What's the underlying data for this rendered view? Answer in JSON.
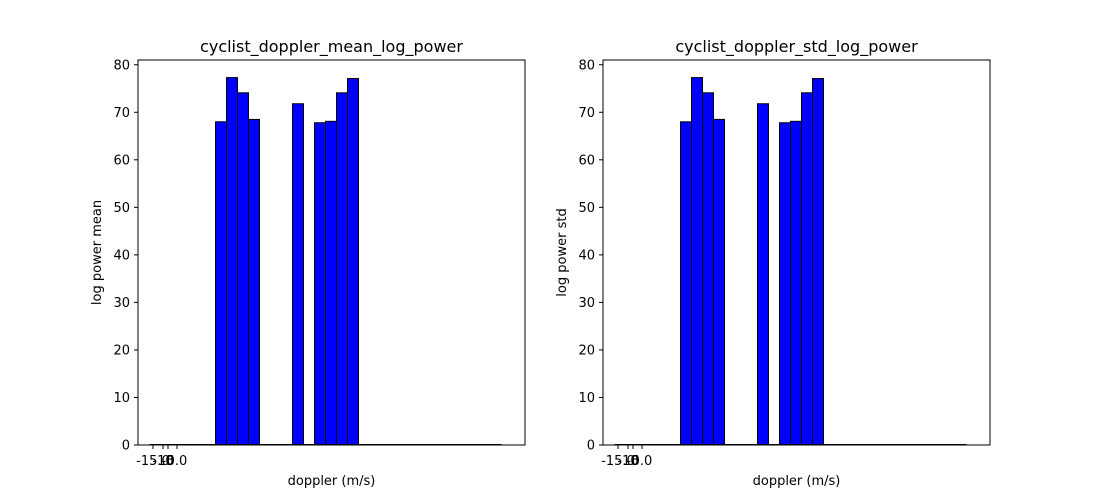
{
  "chart_data": [
    {
      "type": "bar",
      "title": "cyclist_doppler_mean_log_power",
      "xlabel": "doppler (m/s)",
      "ylabel": "log power mean",
      "ylim": [
        0,
        81
      ],
      "yticks": [
        0,
        10,
        20,
        30,
        40,
        50,
        60,
        70,
        80
      ],
      "xtick_labels": [
        "-15.0",
        "-10",
        "-5",
        "0.0"
      ],
      "bar_color": "#0000ff",
      "edge_color": "#000000",
      "grid": false,
      "x": [
        6,
        7,
        8,
        9,
        13,
        15,
        16,
        17,
        18
      ],
      "values": [
        68,
        77.3,
        74.1,
        68.5,
        71.8,
        67.8,
        68.1,
        74.1,
        77.1
      ]
    },
    {
      "type": "bar",
      "title": "cyclist_doppler_std_log_power",
      "xlabel": "doppler (m/s)",
      "ylabel": "log power std",
      "ylim": [
        0,
        81
      ],
      "yticks": [
        0,
        10,
        20,
        30,
        40,
        50,
        60,
        70,
        80
      ],
      "xtick_labels": [
        "-15.0",
        "-10",
        "-5",
        "0.0"
      ],
      "bar_color": "#0000ff",
      "edge_color": "#000000",
      "grid": false,
      "x": [
        6,
        7,
        8,
        9,
        13,
        15,
        16,
        17,
        18
      ],
      "values": [
        68,
        77.3,
        74.1,
        68.5,
        71.8,
        67.8,
        68.1,
        74.1,
        77.1
      ]
    }
  ]
}
